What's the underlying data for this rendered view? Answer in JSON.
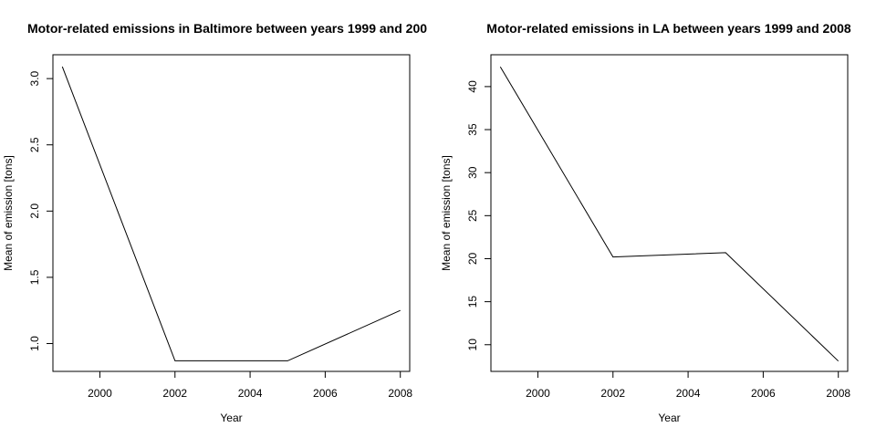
{
  "chart_data": [
    {
      "type": "line",
      "title": "Motor-related emissions in Baltimore between years 1999 and 200",
      "xlabel": "Year",
      "ylabel": "Mean of emission [tons]",
      "x": [
        1999,
        2002,
        2005,
        2008
      ],
      "series": [
        {
          "values": [
            3.09,
            0.87,
            0.87,
            1.25
          ]
        }
      ],
      "xlim": [
        1998.75,
        2008.25
      ],
      "ylim": [
        0.79,
        3.18
      ],
      "xticks": [
        2000,
        2002,
        2004,
        2006,
        2008
      ],
      "yticks": [
        1.0,
        1.5,
        2.0,
        2.5,
        3.0
      ],
      "ytick_labels": [
        "1.0",
        "1.5",
        "2.0",
        "2.5",
        "3.0"
      ],
      "grid": false,
      "color": "#000000"
    },
    {
      "type": "line",
      "title": "Motor-related emissions in LA between years 1999 and 2008",
      "xlabel": "Year",
      "ylabel": "Mean of emission [tons]",
      "x": [
        1999,
        2002,
        2005,
        2008
      ],
      "series": [
        {
          "values": [
            42.3,
            20.2,
            20.7,
            8.1
          ]
        }
      ],
      "xlim": [
        1998.75,
        2008.25
      ],
      "ylim": [
        6.9,
        43.7
      ],
      "xticks": [
        2000,
        2002,
        2004,
        2006,
        2008
      ],
      "yticks": [
        10,
        15,
        20,
        25,
        30,
        35,
        40
      ],
      "ytick_labels": [
        "10",
        "15",
        "20",
        "25",
        "30",
        "35",
        "40"
      ],
      "grid": false,
      "color": "#000000"
    }
  ]
}
